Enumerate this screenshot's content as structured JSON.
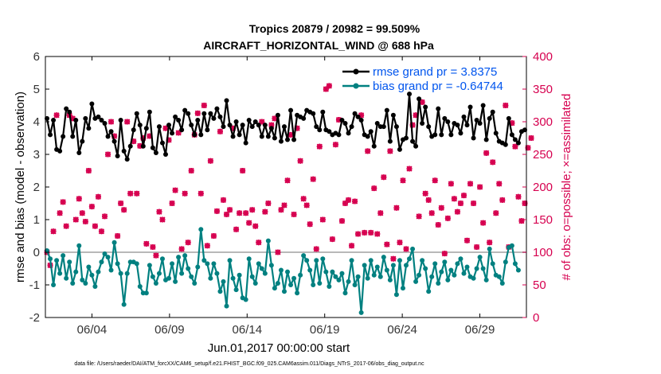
{
  "chart_data": {
    "type": "line",
    "title_line1": "Tropics 20879 / 20982 = 99.509%",
    "title_line2": "AIRCRAFT_HORIZONTAL_WIND @ 688 hPa",
    "xlabel": "Jun.01,2017 00:00:00 start",
    "ylabel_left": "rmse and bias (model - observation)",
    "ylabel_right": "# of obs: o=possible; ×=assimilated",
    "xlim": [
      0,
      31
    ],
    "ylim_left": [
      -2,
      6
    ],
    "ylim_right": [
      0,
      400
    ],
    "x_tick_positions": [
      3,
      8,
      13,
      18,
      23,
      28
    ],
    "x_tick_labels": [
      "06/04",
      "06/09",
      "06/14",
      "06/19",
      "06/24",
      "06/29"
    ],
    "y_left_ticks": [
      -2,
      -1,
      0,
      1,
      2,
      3,
      4,
      5,
      6
    ],
    "y_right_ticks": [
      0,
      50,
      100,
      150,
      200,
      250,
      300,
      350,
      400
    ],
    "zero_line": 0,
    "colors": {
      "rmse": "#000000",
      "bias": "#008080",
      "obs": "#d6004f",
      "legend_text": "#0055ee",
      "zero": "#b8b8b8"
    },
    "series": [
      {
        "name": "rmse grand pr = 3.8375",
        "axis": "left",
        "values": [
          4.1,
          3.6,
          4.05,
          3.15,
          3.1,
          3.55,
          4.4,
          4.3,
          3.55,
          4.05,
          3.05,
          3.4,
          4.1,
          3.8,
          4.55,
          4.1,
          4.15,
          4.05,
          3.95,
          3.55,
          3.7,
          3.4,
          2.95,
          4.05,
          3.1,
          2.85,
          3.25,
          3.75,
          4.25,
          3.9,
          3.25,
          3.8,
          4.3,
          3.2,
          3.05,
          3.85,
          3.35,
          3.0,
          3.9,
          3.65,
          4.15,
          4.05,
          3.75,
          4.35,
          4.25,
          3.9,
          3.6,
          4.05,
          3.6,
          4.25,
          3.75,
          4.25,
          4.1,
          4.4,
          4.15,
          3.85,
          4.65,
          3.9,
          3.55,
          4.0,
          3.6,
          3.9,
          3.35,
          4.05,
          3.85,
          4.0,
          3.9,
          3.55,
          3.9,
          3.55,
          3.8,
          3.5,
          4.2,
          3.4,
          3.85,
          3.45,
          4.35,
          3.45,
          4.2,
          4.15,
          4.1,
          4.35,
          4.3,
          4.25,
          3.85,
          3.75,
          4.3,
          3.75,
          3.7,
          3.6,
          3.65,
          3.6,
          4.05,
          3.95,
          3.65,
          3.85,
          4.25,
          4.15,
          4.05,
          3.6,
          3.55,
          3.7,
          3.25,
          3.95,
          3.85,
          3.85,
          4.35,
          3.4,
          4.2,
          3.85,
          3.15,
          3.45,
          3.5,
          4.85,
          3.4,
          3.25,
          4.7,
          3.95,
          4.45,
          3.85,
          3.55,
          3.6,
          4.4,
          3.6,
          4.1,
          4.0,
          3.6,
          3.95,
          3.9,
          3.65,
          4.15,
          3.9,
          4.45,
          3.5,
          4.05,
          3.95,
          4.5,
          3.45,
          4.1,
          4.3,
          3.65,
          3.4,
          3.35,
          3.3,
          4.1,
          3.6,
          3.45,
          3.35,
          3.7,
          3.75
        ]
      },
      {
        "name": "bias grand pr = -0.64744",
        "axis": "left",
        "values": [
          0.05,
          -0.2,
          -1.0,
          -0.25,
          -0.65,
          -0.1,
          -0.8,
          -0.3,
          -0.95,
          -0.6,
          0.2,
          -0.85,
          -0.95,
          -0.45,
          -0.7,
          -1.05,
          -0.6,
          -0.3,
          -0.05,
          -0.15,
          -0.55,
          0.3,
          -0.35,
          -0.65,
          -1.6,
          -0.65,
          -0.3,
          -0.3,
          -0.35,
          -1.05,
          -1.25,
          -1.25,
          -0.4,
          -0.75,
          -0.95,
          -0.65,
          -0.2,
          -0.85,
          -0.8,
          -0.35,
          -0.9,
          -0.15,
          -0.65,
          -0.1,
          -0.5,
          -0.75,
          -0.95,
          -0.45,
          0.7,
          -0.25,
          -0.35,
          -0.8,
          -0.35,
          -0.65,
          -1.2,
          -0.9,
          -1.65,
          -0.25,
          -0.8,
          -1.15,
          -0.7,
          -1.4,
          -1.45,
          -0.2,
          -0.75,
          -0.95,
          -0.35,
          -0.5,
          -0.65,
          0.35,
          -0.4,
          -1.1,
          -0.95,
          -0.55,
          -1.2,
          -0.6,
          -1.0,
          -0.8,
          -1.25,
          -0.7,
          -0.1,
          -0.25,
          -0.55,
          -1.0,
          -0.25,
          -0.95,
          -0.2,
          -0.6,
          -1.05,
          -0.6,
          -0.75,
          -0.85,
          -0.65,
          -1.25,
          -0.9,
          -0.25,
          -1.0,
          -0.75,
          -1.85,
          -0.4,
          -0.8,
          -0.25,
          -0.7,
          -0.45,
          -0.75,
          -0.15,
          -0.55,
          -0.85,
          -0.4,
          -1.3,
          -0.25,
          -1.1,
          -0.4,
          -0.2,
          0.1,
          -0.9,
          -0.7,
          -0.25,
          -0.5,
          -1.2,
          -0.75,
          -0.35,
          -0.95,
          -0.6,
          -0.3,
          -0.85,
          -0.55,
          -0.7,
          -0.35,
          -0.2,
          -0.65,
          -0.45,
          -0.75,
          -0.8,
          -0.5,
          -0.15,
          -0.5,
          -0.85,
          0.1,
          -0.35,
          -0.7,
          -0.75,
          -0.95,
          -0.3,
          0.15,
          0.2,
          -0.35,
          -0.55
        ]
      },
      {
        "name": "obs possible",
        "axis": "right",
        "values": [
          100,
          80,
          132,
          310,
          160,
          177,
          140,
          310,
          305,
          150,
          182,
          160,
          147,
          225,
          170,
          140,
          185,
          132,
          155,
          250,
          300,
          278,
          125,
          175,
          165,
          300,
          190,
          270,
          190,
          263,
          275,
          113,
          278,
          108,
          95,
          162,
          150,
          290,
          272,
          175,
          195,
          283,
          105,
          190,
          115,
          225,
          280,
          313,
          190,
          325,
          110,
          240,
          125,
          163,
          285,
          180,
          158,
          165,
          290,
          135,
          160,
          225,
          160,
          145,
          165,
          140,
          115,
          300,
          162,
          175,
          295,
          305,
          100,
          165,
          172,
          210,
          280,
          158,
          290,
          240,
          182,
          172,
          143,
          212,
          105,
          262,
          150,
          350,
          355,
          120,
          265,
          303,
          148,
          175,
          180,
          110,
          178,
          128,
          310,
          130,
          255,
          130,
          198,
          128,
          160,
          215,
          112,
          255,
          90,
          168,
          115,
          210,
          105,
          228,
          295,
          310,
          155,
          330,
          190,
          180,
          160,
          210,
          142,
          168,
          98,
          152,
          205,
          182,
          162,
          175,
          187,
          118,
          205,
          175,
          108,
          200,
          145,
          252,
          115,
          238,
          160,
          205,
          180,
          325,
          108,
          298,
          262,
          185,
          148,
          175,
          260,
          275
        ]
      },
      {
        "name": "obs assimilated",
        "axis": "right",
        "values": [
          100,
          80,
          132,
          310,
          160,
          177,
          140,
          310,
          305,
          150,
          182,
          160,
          147,
          225,
          170,
          140,
          185,
          132,
          155,
          250,
          300,
          278,
          125,
          175,
          165,
          300,
          190,
          270,
          190,
          263,
          275,
          113,
          278,
          108,
          95,
          162,
          150,
          290,
          272,
          175,
          195,
          283,
          105,
          190,
          115,
          225,
          280,
          313,
          190,
          325,
          110,
          240,
          125,
          163,
          285,
          180,
          158,
          165,
          290,
          135,
          160,
          225,
          160,
          145,
          165,
          140,
          115,
          300,
          162,
          175,
          295,
          305,
          100,
          165,
          172,
          210,
          280,
          158,
          290,
          240,
          182,
          172,
          143,
          212,
          105,
          262,
          150,
          350,
          355,
          120,
          265,
          303,
          148,
          175,
          180,
          110,
          178,
          128,
          310,
          130,
          255,
          130,
          198,
          128,
          160,
          215,
          112,
          255,
          90,
          168,
          115,
          210,
          105,
          228,
          295,
          310,
          155,
          330,
          190,
          180,
          160,
          210,
          142,
          168,
          98,
          152,
          205,
          182,
          162,
          175,
          187,
          118,
          205,
          175,
          108,
          200,
          145,
          252,
          115,
          238,
          160,
          205,
          180,
          325,
          108,
          298,
          262,
          185,
          148,
          175,
          260,
          275
        ]
      }
    ],
    "legend": [
      "rmse grand pr = 3.8375",
      "bias grand pr = -0.64744"
    ],
    "footnote": "data file: /Users/raeder/DAI/ATM_forcXX/CAM6_setup/f.e21.FHIST_BGC.f09_025.CAM6assim.011/Diags_NTrS_2017-06/obs_diag_output.nc"
  }
}
